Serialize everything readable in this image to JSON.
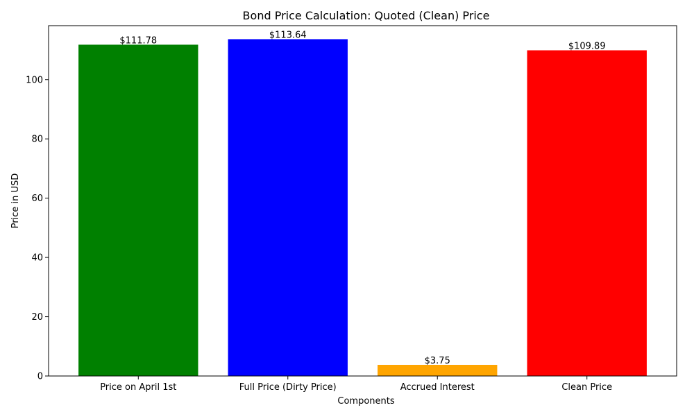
{
  "chart_data": {
    "type": "bar",
    "title": "Bond Price Calculation: Quoted (Clean) Price",
    "xlabel": "Components",
    "ylabel": "Price in USD",
    "categories": [
      "Price on April 1st",
      "Full Price (Dirty Price)",
      "Accrued Interest",
      "Clean Price"
    ],
    "values": [
      111.78,
      113.64,
      3.75,
      109.89
    ],
    "data_labels": [
      "$111.78",
      "$113.64",
      "$3.75",
      "$109.89"
    ],
    "colors": [
      "#008000",
      "#0000ff",
      "#ffa500",
      "#ff0000"
    ],
    "ylim": [
      0,
      118.2
    ],
    "yticks": [
      0,
      20,
      40,
      60,
      80,
      100
    ],
    "grid": false,
    "legend": "none"
  }
}
